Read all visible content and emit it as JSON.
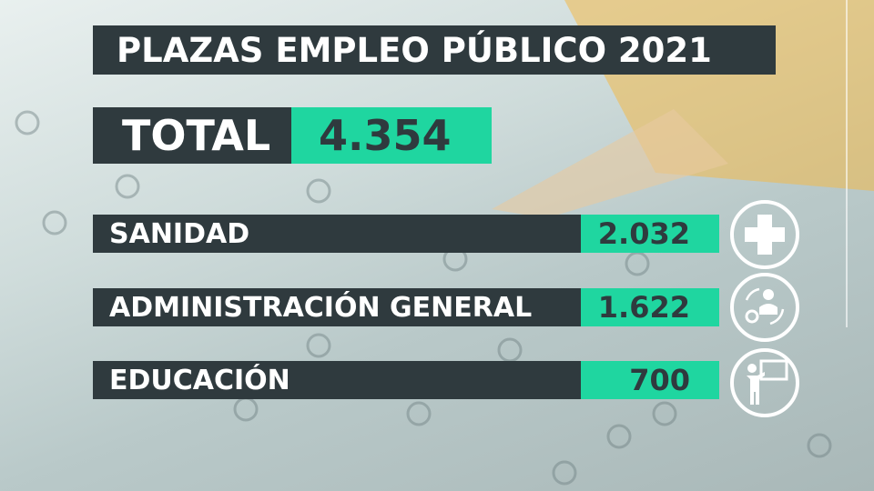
{
  "title": "PLAZAS EMPLEO PÚBLICO 2021",
  "total": {
    "label": "TOTAL",
    "value": "4.354"
  },
  "rows": [
    {
      "label": "SANIDAD",
      "value": "2.032"
    },
    {
      "label": "ADMINISTRACIÓN GENERAL",
      "value": "1.622"
    },
    {
      "label": "EDUCACIÓN",
      "value": "700"
    }
  ]
}
